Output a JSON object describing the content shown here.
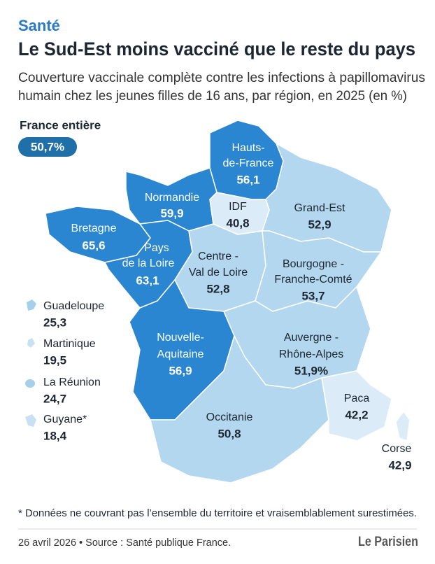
{
  "header": {
    "kicker": "Santé",
    "title": "Le Sud-Est moins vacciné que le reste du pays",
    "subtitle_lines": [
      "Couverture vaccinale complète contre les infections à papillomavirus",
      "humain chez les jeunes filles de 16 ans, par région, en 2025 (en %)"
    ]
  },
  "national": {
    "label": "France entière",
    "value": "50,7%"
  },
  "regions": [
    {
      "name_lines": [
        "Hauts-",
        "de-France"
      ],
      "value": "56,1"
    },
    {
      "name_lines": [
        "Normandie"
      ],
      "value": "59,9"
    },
    {
      "name_lines": [
        "Bretagne"
      ],
      "value": "65,6"
    },
    {
      "name_lines": [
        "Pays",
        "de la Loire"
      ],
      "value": "63,1"
    },
    {
      "name_lines": [
        "IDF"
      ],
      "value": "40,8"
    },
    {
      "name_lines": [
        "Grand-Est"
      ],
      "value": "52,9"
    },
    {
      "name_lines": [
        "Centre -",
        "Val de Loire"
      ],
      "value": "52,8"
    },
    {
      "name_lines": [
        "Bourgogne -",
        "Franche-Comté"
      ],
      "value": "53,7"
    },
    {
      "name_lines": [
        "Nouvelle-",
        "Aquitaine"
      ],
      "value": "56,9"
    },
    {
      "name_lines": [
        "Auvergne -",
        "Rhône-Alpes"
      ],
      "value": "51,9%"
    },
    {
      "name_lines": [
        "Occitanie"
      ],
      "value": "50,8"
    },
    {
      "name_lines": [
        "Paca"
      ],
      "value": "42,2"
    },
    {
      "name_lines": [
        "Corse"
      ],
      "value": "42,9"
    }
  ],
  "overseas": [
    {
      "name": "Guadeloupe",
      "value": "25,3"
    },
    {
      "name": "Martinique",
      "value": "19,5"
    },
    {
      "name": "La Réunion",
      "value": "24,7"
    },
    {
      "name": "Guyane*",
      "value": "18,4"
    }
  ],
  "footer": {
    "note": "* Données ne couvrant pas l’ensemble du territoire et vraisemblablement surestimées.",
    "source": "26 avril 2026 • Source : Santé publique France.",
    "logo": "Le Parisien"
  }
}
